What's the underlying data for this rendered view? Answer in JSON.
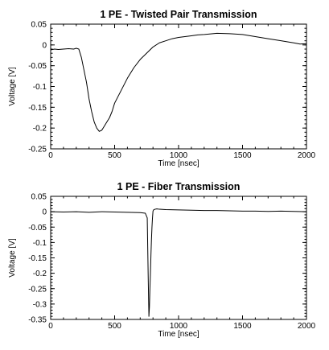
{
  "chart_data": [
    {
      "type": "line",
      "title": "1 PE - Twisted Pair Transmission",
      "xlabel": "Time [nsec]",
      "ylabel": "Voltage [V]",
      "xlim": [
        0,
        2000
      ],
      "ylim": [
        -0.25,
        0.05
      ],
      "xticks": [
        "0",
        "500",
        "1000",
        "1500",
        "2000"
      ],
      "yticks": [
        "0.05",
        "0",
        "-0.05",
        "-0.1",
        "-0.15",
        "-0.2",
        "-0.25"
      ],
      "grid": false,
      "series": [
        {
          "x": [
            0,
            30,
            60,
            100,
            140,
            180,
            200,
            220,
            240,
            260,
            280,
            300,
            320,
            340,
            360,
            380,
            400,
            420,
            440,
            460,
            480,
            500,
            550,
            600,
            650,
            700,
            750,
            800,
            850,
            900,
            950,
            1000,
            1050,
            1100,
            1150,
            1200,
            1300,
            1400,
            1500,
            1600,
            1700,
            1800,
            1900,
            1950,
            2000
          ],
          "y": [
            -0.012,
            -0.01,
            -0.011,
            -0.01,
            -0.009,
            -0.01,
            -0.008,
            -0.01,
            -0.03,
            -0.06,
            -0.09,
            -0.13,
            -0.16,
            -0.185,
            -0.2,
            -0.208,
            -0.205,
            -0.195,
            -0.185,
            -0.175,
            -0.16,
            -0.14,
            -0.11,
            -0.08,
            -0.055,
            -0.035,
            -0.02,
            -0.005,
            0.005,
            0.01,
            0.015,
            0.018,
            0.02,
            0.022,
            0.024,
            0.025,
            0.028,
            0.027,
            0.025,
            0.02,
            0.015,
            0.01,
            0.005,
            0.002,
            0.003
          ]
        }
      ]
    },
    {
      "type": "line",
      "title": "1 PE - Fiber Transmission",
      "xlabel": "Time [nsec]",
      "ylabel": "Voltage [V]",
      "xlim": [
        0,
        2000
      ],
      "ylim": [
        -0.35,
        0.05
      ],
      "xticks": [
        "0",
        "500",
        "1000",
        "1500",
        "2000"
      ],
      "yticks": [
        "0.05",
        "0",
        "-0.05",
        "-0.1",
        "-0.15",
        "-0.2",
        "-0.25",
        "-0.3",
        "-0.35"
      ],
      "grid": false,
      "series": [
        {
          "x": [
            0,
            100,
            200,
            300,
            400,
            500,
            600,
            700,
            740,
            755,
            762,
            768,
            772,
            776,
            780,
            784,
            788,
            792,
            796,
            800,
            805,
            815,
            830,
            850,
            900,
            1000,
            1100,
            1200,
            1300,
            1400,
            1500,
            1600,
            1700,
            1800,
            1900,
            2000
          ],
          "y": [
            0.0,
            -0.001,
            0.0,
            -0.002,
            0.0,
            -0.001,
            -0.002,
            -0.003,
            -0.005,
            -0.02,
            -0.2,
            -0.34,
            -0.31,
            -0.25,
            -0.2,
            -0.14,
            -0.09,
            -0.05,
            -0.02,
            0.002,
            0.006,
            0.008,
            0.009,
            0.008,
            0.007,
            0.006,
            0.005,
            0.004,
            0.004,
            0.003,
            0.002,
            0.002,
            0.001,
            0.002,
            0.001,
            0.0
          ]
        }
      ]
    }
  ]
}
